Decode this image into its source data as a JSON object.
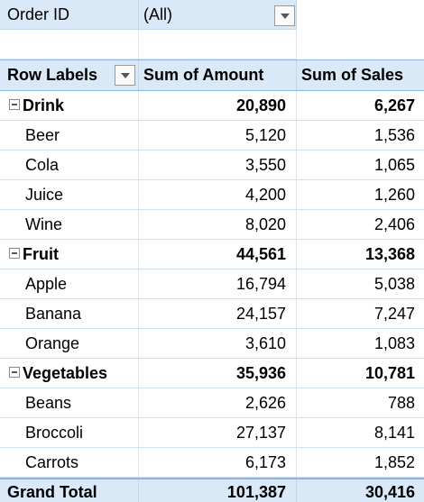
{
  "filter": {
    "label": "Order ID",
    "value": "(All)"
  },
  "header": {
    "row_labels": "Row Labels",
    "col_amount": "Sum of Amount",
    "col_sales": "Sum of Sales"
  },
  "groups": [
    {
      "label": "Drink",
      "amount": "20,890",
      "sales": "6,267",
      "items": [
        {
          "label": "Beer",
          "amount": "5,120",
          "sales": "1,536"
        },
        {
          "label": "Cola",
          "amount": "3,550",
          "sales": "1,065"
        },
        {
          "label": "Juice",
          "amount": "4,200",
          "sales": "1,260"
        },
        {
          "label": "Wine",
          "amount": "8,020",
          "sales": "2,406"
        }
      ]
    },
    {
      "label": "Fruit",
      "amount": "44,561",
      "sales": "13,368",
      "items": [
        {
          "label": "Apple",
          "amount": "16,794",
          "sales": "5,038"
        },
        {
          "label": "Banana",
          "amount": "24,157",
          "sales": "7,247"
        },
        {
          "label": "Orange",
          "amount": "3,610",
          "sales": "1,083"
        }
      ]
    },
    {
      "label": "Vegetables",
      "amount": "35,936",
      "sales": "10,781",
      "items": [
        {
          "label": "Beans",
          "amount": "2,626",
          "sales": "788"
        },
        {
          "label": "Broccoli",
          "amount": "27,137",
          "sales": "8,141"
        },
        {
          "label": "Carrots",
          "amount": "6,173",
          "sales": "1,852"
        }
      ]
    }
  ],
  "grand_total": {
    "label": "Grand Total",
    "amount": "101,387",
    "sales": "30,416"
  }
}
